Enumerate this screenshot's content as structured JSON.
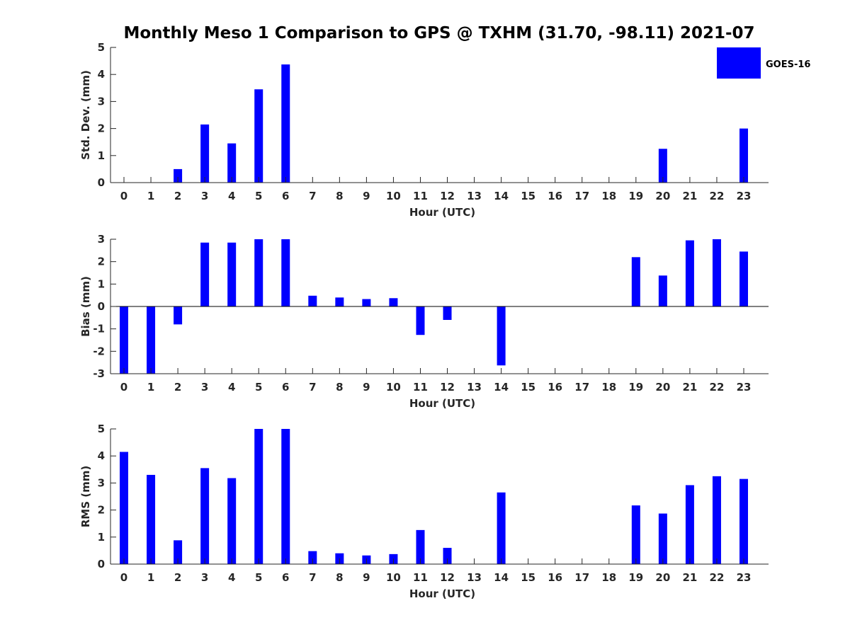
{
  "chart_data": {
    "title": "Monthly Meso 1 Comparison to GPS @ TXHM (31.70, -98.11) 2021-07",
    "legend": {
      "labels": [
        "GOES-16"
      ],
      "placement": "top-right",
      "color": "#0000ff"
    },
    "bar_color": "#0000ff",
    "panels": [
      {
        "type": "bar",
        "name": "std-dev",
        "ylabel": "Std. Dev. (mm)",
        "xlabel": "Hour (UTC)",
        "ylim": [
          0,
          5
        ],
        "yticks": [
          0,
          1,
          2,
          3,
          4,
          5
        ],
        "categories": [
          "0",
          "1",
          "2",
          "3",
          "4",
          "5",
          "6",
          "7",
          "8",
          "9",
          "10",
          "11",
          "12",
          "13",
          "14",
          "15",
          "16",
          "17",
          "18",
          "19",
          "20",
          "21",
          "22",
          "23"
        ],
        "series": [
          {
            "name": "GOES-16",
            "values": [
              0,
              0,
              0.5,
              2.15,
              1.45,
              3.45,
              4.37,
              0,
              0,
              0,
              0,
              0,
              0,
              0,
              0,
              0,
              0,
              0,
              0,
              0,
              1.25,
              0,
              0,
              2.0
            ]
          }
        ]
      },
      {
        "type": "bar",
        "name": "bias",
        "ylabel": "Bias (mm)",
        "xlabel": "Hour (UTC)",
        "ylim": [
          -3,
          3
        ],
        "yticks": [
          -3,
          -2,
          -1,
          0,
          1,
          2,
          3
        ],
        "categories": [
          "0",
          "1",
          "2",
          "3",
          "4",
          "5",
          "6",
          "7",
          "8",
          "9",
          "10",
          "11",
          "12",
          "13",
          "14",
          "15",
          "16",
          "17",
          "18",
          "19",
          "20",
          "21",
          "22",
          "23"
        ],
        "series": [
          {
            "name": "GOES-16",
            "values": [
              -3.0,
              -3.0,
              -0.8,
              2.85,
              2.85,
              3.0,
              3.0,
              0.48,
              0.4,
              0.33,
              0.37,
              -1.27,
              -0.6,
              0,
              -2.63,
              0,
              0,
              0,
              0,
              2.2,
              1.38,
              2.95,
              3.0,
              2.45
            ]
          }
        ]
      },
      {
        "type": "bar",
        "name": "rms",
        "ylabel": "RMS (mm)",
        "xlabel": "Hour (UTC)",
        "ylim": [
          0,
          5
        ],
        "yticks": [
          0,
          1,
          2,
          3,
          4,
          5
        ],
        "categories": [
          "0",
          "1",
          "2",
          "3",
          "4",
          "5",
          "6",
          "7",
          "8",
          "9",
          "10",
          "11",
          "12",
          "13",
          "14",
          "15",
          "16",
          "17",
          "18",
          "19",
          "20",
          "21",
          "22",
          "23"
        ],
        "series": [
          {
            "name": "GOES-16",
            "values": [
              4.15,
              3.3,
              0.88,
              3.55,
              3.18,
              5.0,
              5.0,
              0.48,
              0.4,
              0.32,
              0.37,
              1.26,
              0.6,
              0,
              2.65,
              0,
              0,
              0,
              0,
              2.17,
              1.87,
              2.92,
              3.25,
              3.15
            ]
          }
        ]
      }
    ]
  }
}
